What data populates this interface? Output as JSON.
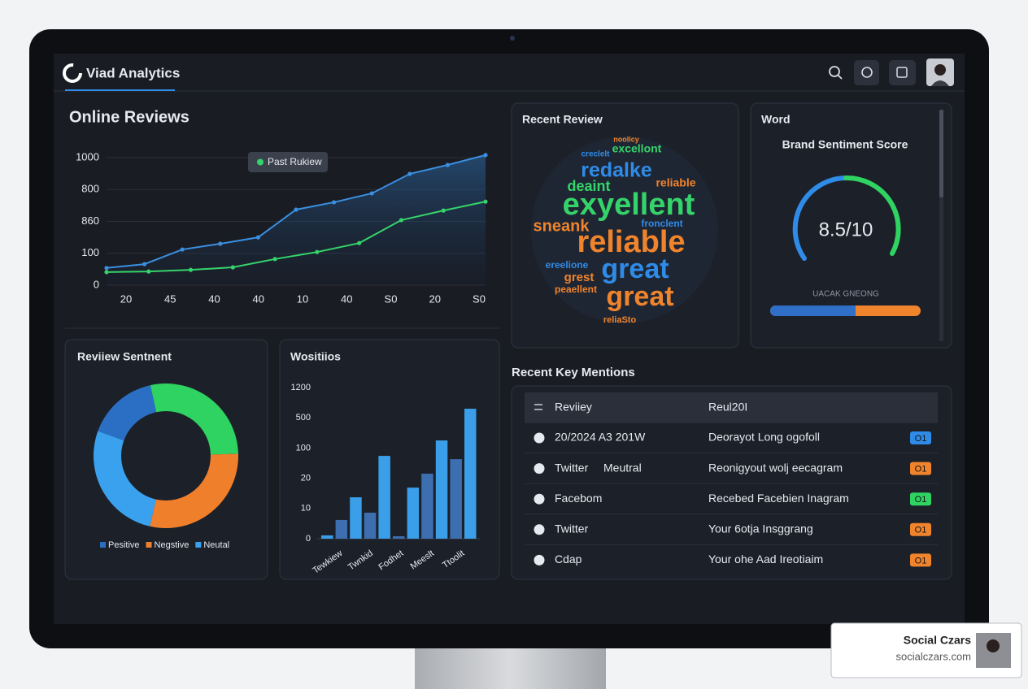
{
  "header": {
    "title": "Viad Analytics"
  },
  "online_reviews": {
    "type": "line",
    "title": "Online Reviews",
    "tooltip": "Past Rukiew",
    "y_labels": [
      "1000",
      "800",
      "860",
      "100",
      "0"
    ],
    "x_labels": [
      "20",
      "45",
      "40",
      "40",
      "10",
      "40",
      "S0",
      "20",
      "S0"
    ],
    "series": [
      {
        "color": "#3a8fe0",
        "values": [
          0.54,
          0.66,
          1.12,
          1.3,
          1.5,
          2.37,
          2.6,
          2.88,
          3.49,
          3.77,
          4.08
        ]
      },
      {
        "color": "#35d46a",
        "values": [
          0.41,
          0.43,
          0.48,
          0.56,
          0.82,
          1.04,
          1.32,
          2.04,
          2.34,
          2.62
        ]
      }
    ]
  },
  "recent_review": {
    "title": "Recent Review",
    "words": [
      "noolicy",
      "creclelt",
      "excellont",
      "redalke",
      "reliable",
      "deaint",
      "exyellent",
      "sneank",
      "fronclent",
      "reliable",
      "ereelione",
      "great",
      "grest",
      "peaellent",
      "great",
      "reliaSto"
    ]
  },
  "sentiment_gauge": {
    "title": "Word",
    "subtitle": "Brand Sentiment Score",
    "score": "8.5/10",
    "caption": "UACAK GNEONG"
  },
  "review_sentiment": {
    "type": "pie",
    "title": "Reviiew Sentnent",
    "segments": [
      {
        "name": "Pesitive",
        "value": 16,
        "color": "#2a6fc4"
      },
      {
        "value": 28,
        "color": "#2fd361"
      },
      {
        "name": "Negstive",
        "value": 29,
        "color": "#f07f2c"
      },
      {
        "name": "Neutal",
        "value": 27,
        "color": "#3aa1ee"
      }
    ]
  },
  "positions": {
    "type": "bar",
    "title": "Wositiios",
    "y_labels": [
      "1200",
      "500",
      "100",
      "20",
      "10",
      "0"
    ],
    "x_labels": [
      "Tewkiew",
      "Twnkid",
      "Fodhet",
      "Meeslt",
      "Ttoolit"
    ],
    "values": [
      0.11,
      0.62,
      1.37,
      0.86,
      2.74,
      0.08,
      1.69,
      2.15,
      3.25,
      2.63,
      4.3
    ],
    "colors": [
      "#3a9ee8",
      "#3d6fb0"
    ]
  },
  "key_mentions": {
    "title": "Recent Key Mentions",
    "columns": [
      "Reviiey",
      "Reul20I"
    ],
    "rows": [
      {
        "source": "20/2024 A3 201W",
        "text": "Deorayot Long ogofoll",
        "badge": "O1",
        "badge_color": "#2f8be8"
      },
      {
        "source": "Twitter",
        "status": "Meutral",
        "text": "Reonigyout wolj eecagram",
        "badge": "O1",
        "badge_color": "#f0842c"
      },
      {
        "source": "Facebom",
        "text": "Recebed Facebien Inagram",
        "badge": "O1",
        "badge_color": "#2fd361"
      },
      {
        "source": "Twitter",
        "text": "Your 6otja Insggrang",
        "badge": "O1",
        "badge_color": "#f0842c"
      },
      {
        "source": "Cdap",
        "text": "Your ohe Aad Ireotiaim",
        "badge": "O1",
        "badge_color": "#f0842c"
      }
    ]
  },
  "watermark": {
    "brand": "Social Czars",
    "url": "socialczars.com"
  }
}
